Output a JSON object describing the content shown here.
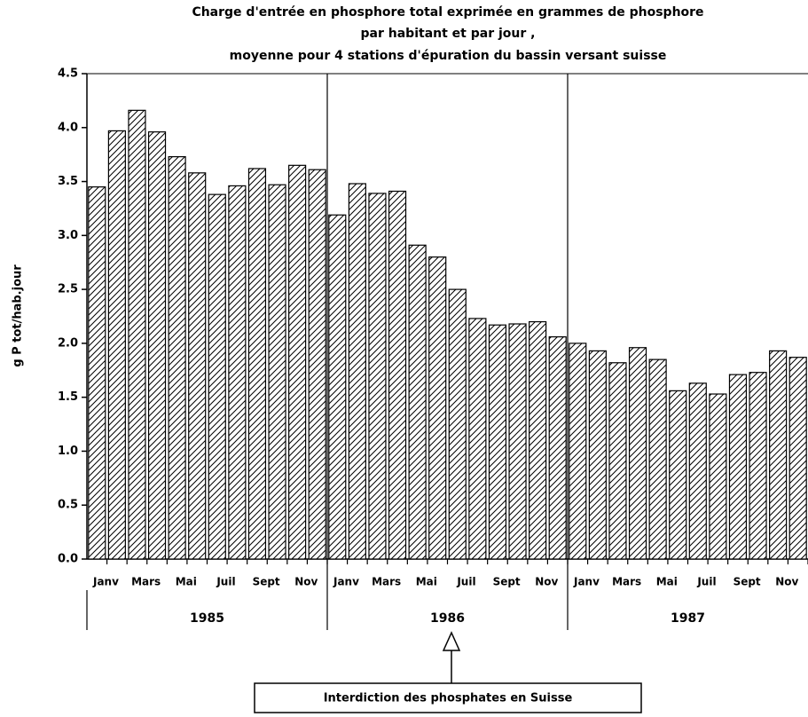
{
  "chart_data": {
    "type": "bar",
    "title": [
      "Charge d'entrée en phosphore total exprimée en grammes de phosphore",
      "par habitant et par jour ,",
      "moyenne pour 4 stations d'épuration du bassin versant suisse"
    ],
    "y_label": "g P tot/hab.jour",
    "categories": [
      "Janv",
      null,
      "Mars",
      null,
      "Mai",
      null,
      "Juil",
      null,
      "Sept",
      null,
      "Nov",
      null,
      "Janv",
      null,
      "Mars",
      null,
      "Mai",
      null,
      "Juil",
      null,
      "Sept",
      null,
      "Nov",
      null,
      "Janv",
      null,
      "Mars",
      null,
      "Mai",
      null,
      "Juil",
      null,
      "Sept",
      null,
      "Nov",
      null
    ],
    "values": [
      3.45,
      3.97,
      4.16,
      3.96,
      3.73,
      3.58,
      3.38,
      3.46,
      3.62,
      3.47,
      3.65,
      3.61,
      3.19,
      3.48,
      3.39,
      3.41,
      2.91,
      2.8,
      2.5,
      2.23,
      2.17,
      2.18,
      2.2,
      2.06,
      2.0,
      1.93,
      1.82,
      1.96,
      1.85,
      1.56,
      1.63,
      1.53,
      1.71,
      1.73,
      1.93,
      1.87
    ],
    "year_labels": [
      "1985",
      "1986",
      "1987"
    ],
    "annotation": "Interdiction des phosphates en Suisse",
    "color": "#000000",
    "ylim": [
      0,
      4.5
    ],
    "yticks": [
      {
        "value": 0,
        "label": "0.0"
      },
      0.5,
      {
        "value": 1,
        "label": "1.0"
      },
      1.5,
      {
        "value": 2,
        "label": "2.0"
      },
      2.5,
      {
        "value": 3,
        "label": "3.0"
      },
      3.5,
      {
        "value": 4,
        "label": "4.0"
      },
      4.5
    ],
    "grid": false
  }
}
